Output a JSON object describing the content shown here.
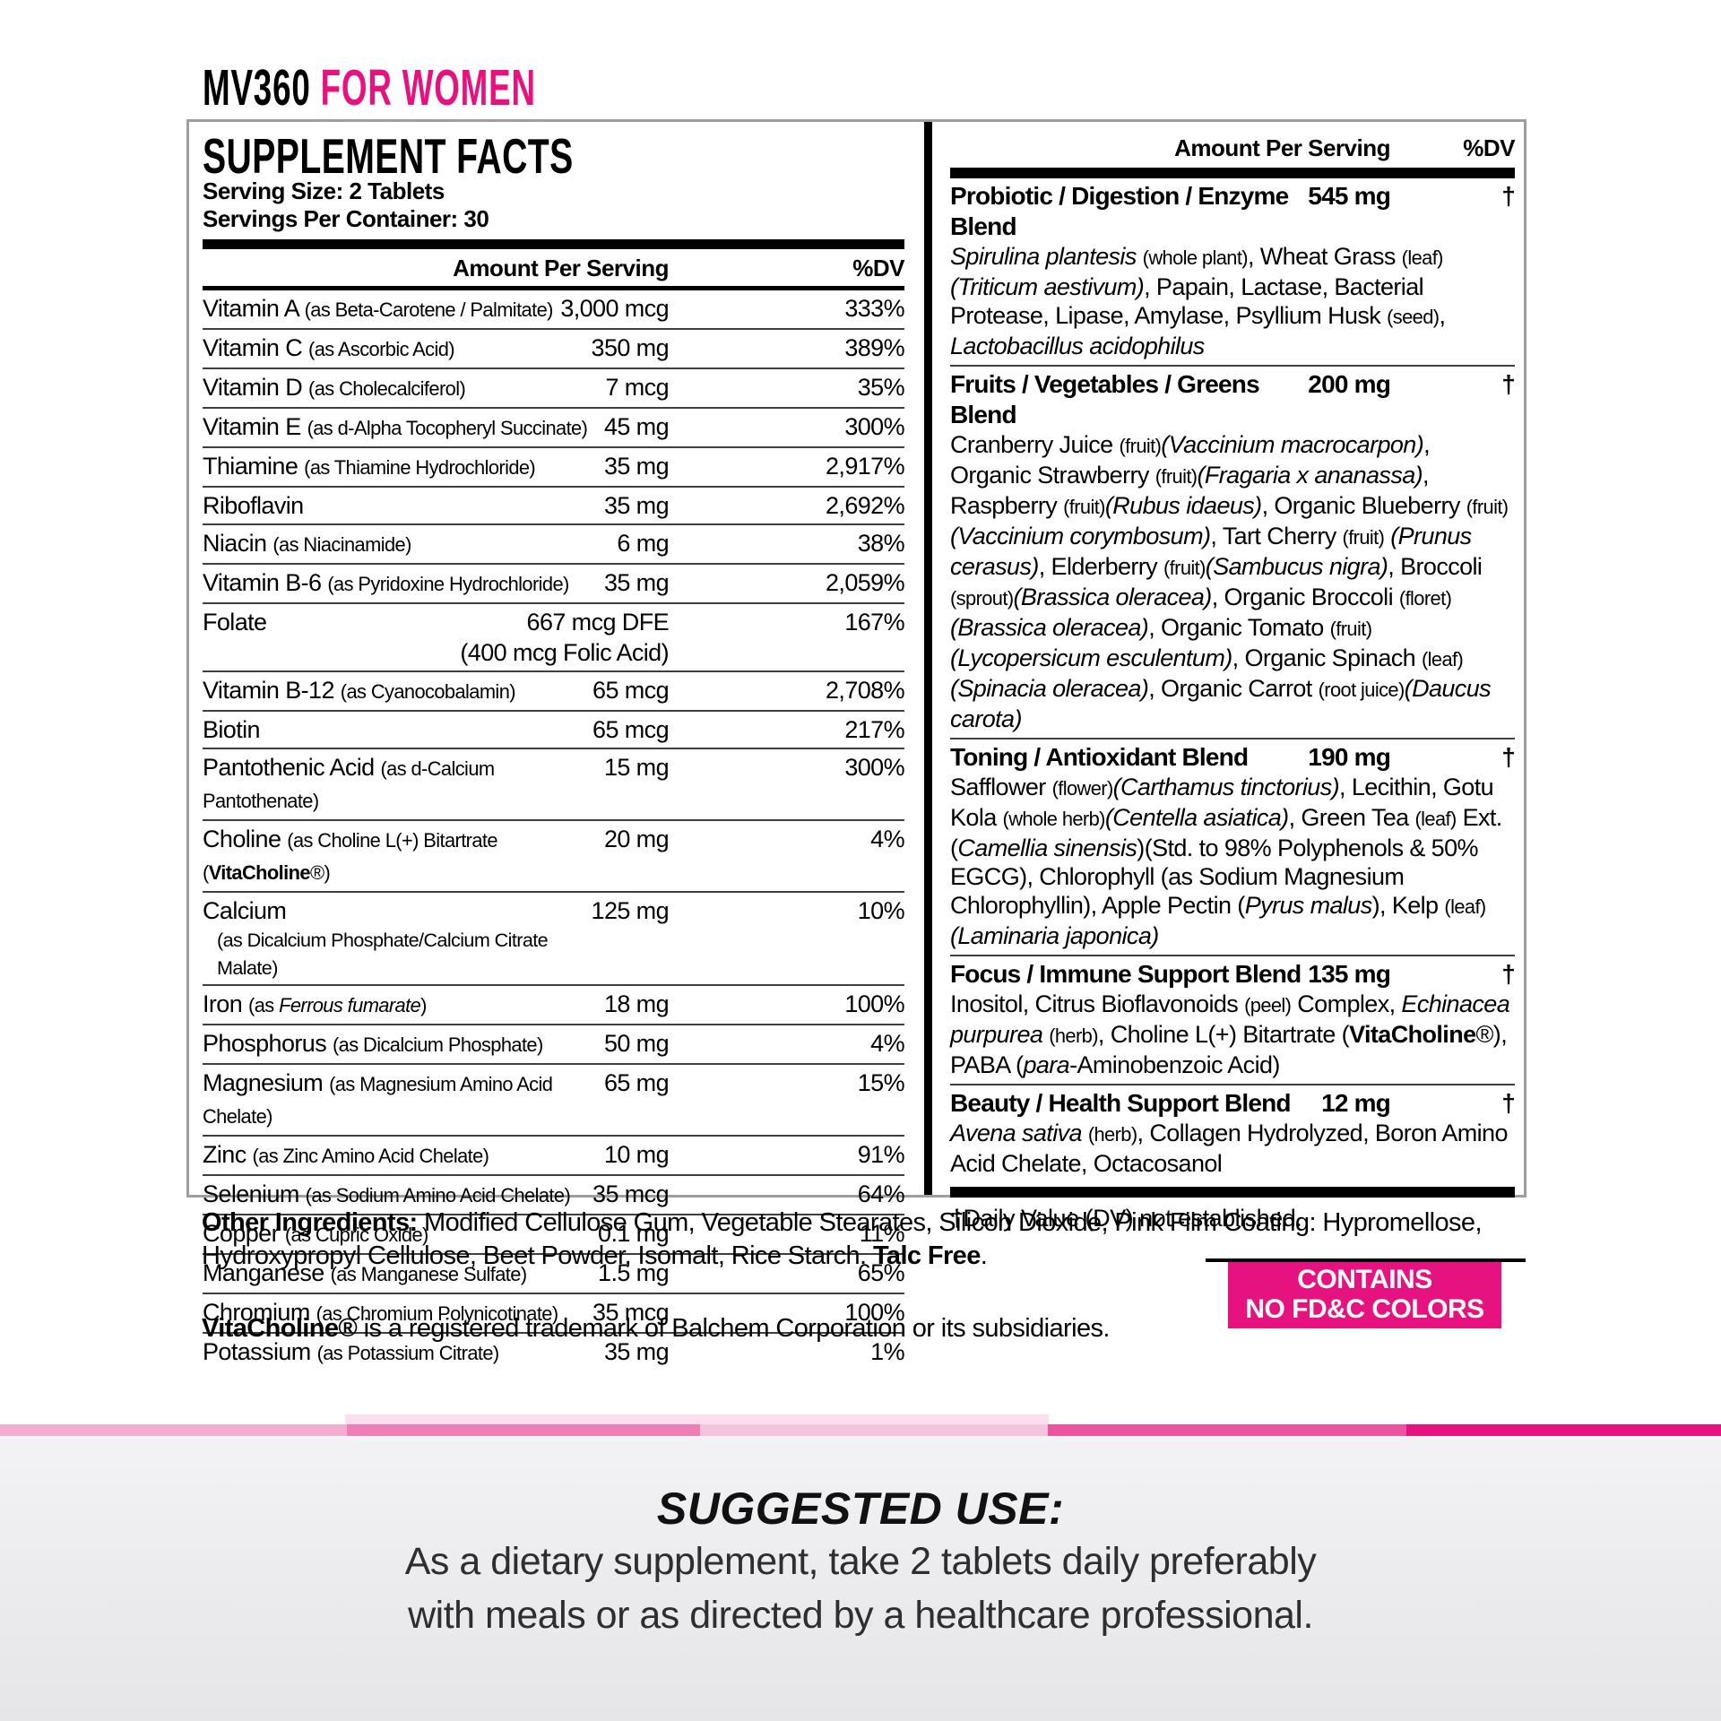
{
  "brand": {
    "name": "MV360",
    "variant": "FOR WOMEN",
    "accent_color": "#E5127F"
  },
  "facts": {
    "title": "SUPPLEMENT FACTS",
    "serving_size": "Serving Size: 2 Tablets",
    "servings_per_container": "Servings Per Container: 30",
    "header": {
      "amount": "Amount Per Serving",
      "dv": "%DV"
    },
    "rows": [
      {
        "name": "Vitamin A ~(as Beta-Carotene / Palmitate)~",
        "amount": "3,000 mcg",
        "dv": "333%"
      },
      {
        "name": "Vitamin C ~(as Ascorbic Acid)~",
        "amount": "350 mg",
        "dv": "389%"
      },
      {
        "name": "Vitamin D ~(as Cholecalciferol)~",
        "amount": "7 mcg",
        "dv": "35%"
      },
      {
        "name": "Vitamin E ~(as d-Alpha Tocopheryl Succinate)~",
        "amount": "45 mg",
        "dv": "300%"
      },
      {
        "name": "Thiamine ~(as Thiamine Hydrochloride)~",
        "amount": "35 mg",
        "dv": "2,917%"
      },
      {
        "name": "Riboflavin",
        "amount": "35 mg",
        "dv": "2,692%"
      },
      {
        "name": "Niacin ~(as Niacinamide)~",
        "amount": "6 mg",
        "dv": "38%"
      },
      {
        "name": "Vitamin B-6 ~(as Pyridoxine Hydrochloride)~",
        "amount": "35 mg",
        "dv": "2,059%"
      },
      {
        "name": "Folate",
        "amount": "667 mcg DFE",
        "amount2": "(400 mcg Folic Acid)",
        "dv": "167%"
      },
      {
        "name": "Vitamin B-12 ~(as Cyanocobalamin)~",
        "amount": "65 mcg",
        "dv": "2,708%"
      },
      {
        "name": "Biotin",
        "amount": "65 mcg",
        "dv": "217%"
      },
      {
        "name": "Pantothenic Acid ~(as d-Calcium Pantothenate)~",
        "amount": "15 mg",
        "dv": "300%"
      },
      {
        "name": "Choline ~(as Choline L(+) Bitartrate (**VitaCholine**®)~",
        "amount": "20 mg",
        "dv": "4%"
      },
      {
        "name": "Calcium",
        "name2": "(as Dicalcium Phosphate/Calcium Citrate Malate)",
        "amount": "125 mg",
        "dv": "10%"
      },
      {
        "name": "Iron ~(as *Ferrous fumarate*)~",
        "amount": "18 mg",
        "dv": "100%"
      },
      {
        "name": "Phosphorus ~(as Dicalcium Phosphate)~",
        "amount": "50 mg",
        "dv": "4%"
      },
      {
        "name": "Magnesium ~(as Magnesium Amino Acid Chelate)~",
        "amount": "65 mg",
        "dv": "15%"
      },
      {
        "name": "Zinc ~(as Zinc Amino Acid Chelate)~",
        "amount": "10 mg",
        "dv": "91%"
      },
      {
        "name": "Selenium ~(as Sodium Amino Acid Chelate)~",
        "amount": "35 mcg",
        "dv": "64%"
      },
      {
        "name": "Copper ~(as Cupric Oxide)~",
        "amount": "0.1 mg",
        "dv": "11%"
      },
      {
        "name": "Manganese ~(as Manganese Sulfate)~",
        "amount": "1.5 mg",
        "dv": "65%"
      },
      {
        "name": "Chromium ~(as Chromium Polynicotinate)~",
        "amount": "35 mcg",
        "dv": "100%"
      },
      {
        "name": "Potassium ~(as Potassium Citrate)~",
        "amount": "35 mg",
        "dv": "1%"
      }
    ]
  },
  "blends": {
    "header": {
      "amount": "Amount Per Serving",
      "dv": "%DV"
    },
    "items": [
      {
        "name": "Probiotic / Digestion / Enzyme Blend",
        "amount": "545 mg",
        "dv": "†",
        "body": "*Spirulina plantesis* ~(whole plant)~, Wheat Grass ~(leaf)~ *(Triticum aestivum)*, Papain, Lactase, Bacterial Protease, Lipase, Amylase, Psyllium Husk ~(seed)~, *Lactobacillus acidophilus*"
      },
      {
        "name": "Fruits / Vegetables / Greens Blend",
        "amount": "200 mg",
        "dv": "†",
        "body": "Cranberry Juice ~(fruit)~*(Vaccinium macrocarpon)*, Organic Strawberry ~(fruit)~*(Fragaria x ananassa)*, Raspberry ~(fruit)~*(Rubus idaeus)*, Organic Blueberry ~(fruit)~*(Vaccinium corymbosum)*, Tart Cherry ~(fruit)~ *(Prunus cerasus)*, Elderberry ~(fruit)~*(Sambucus nigra)*, Broccoli ~(sprout)~*(Brassica oleracea)*, Organic Broccoli ~(floret)~*(Brassica oleracea)*, Organic Tomato ~(fruit)~*(Lycopersicum esculentum)*, Organic Spinach ~(leaf)~*(Spinacia oleracea)*, Organic Carrot ~(root juice)~*(Daucus carota)*"
      },
      {
        "name": "Toning / Antioxidant Blend",
        "amount": "190 mg",
        "dv": "†",
        "body": "Safflower ~(flower)~*(Carthamus tinctorius)*, Lecithin, Gotu Kola ~(whole herb)~*(Centella asiatica)*, Green Tea ~(leaf)~ Ext. (*Camellia sinensis*)(Std. to 98% Polyphenols & 50% EGCG), Chlorophyll (as Sodium Magnesium Chlorophyllin), Apple Pectin (*Pyrus malus*), Kelp ~(leaf)~*(Laminaria japonica)*"
      },
      {
        "name": "Focus / Immune Support Blend",
        "amount": "135 mg",
        "dv": "†",
        "body": "Inositol, Citrus Bioflavonoids ~(peel)~ Complex, *Echinacea purpurea* ~(herb)~, Choline L(+) Bitartrate (**VitaCholine**®), PABA (*para*-Aminobenzoic Acid)"
      },
      {
        "name": "Beauty / Health Support Blend",
        "amount": "12 mg",
        "dv": "†",
        "body": "*Avena sativa* ~(herb)~, Collagen Hydrolyzed, Boron Amino Acid Chelate, Octacosanol"
      }
    ],
    "footnote": "†Daily Value (DV) not established."
  },
  "other_ingredients": "**Other Ingredients:** Modified Cellulose Gum, Vegetable Stearates, Silicon Dioxide, Pink Film Coating: Hypromellose, Hydroxypropyl Cellulose, Beet Powder, Isomalt, Rice Starch. **Talc Free**.",
  "trademark_note": "**VitaCholine®** is a registered trademark of Balchem Corporation or its subsidiaries.",
  "badge": {
    "line1": "CONTAINS",
    "line2": "NO FD&C COLORS",
    "color": "#E5127F"
  },
  "suggested_use": {
    "title": "SUGGESTED USE:",
    "line1": "As a dietary supplement, take 2 tablets daily preferably",
    "line2": "with meals or as directed by a healthcare professional."
  },
  "decor": {
    "stripe_top_color": "#FBDFEF",
    "stripe_colors": [
      "#F2AECE",
      "#EE7EB6",
      "#F5C3DB",
      "#EC549F",
      "#E5127F"
    ],
    "panel_bg": "#ECECEF"
  }
}
